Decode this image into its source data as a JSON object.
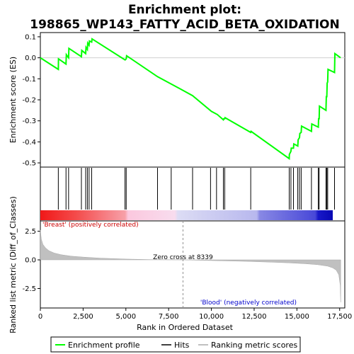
{
  "chart_data": {
    "type": "line",
    "title_line1": "Enrichment plot:",
    "title_line2": "198865_WP143_FATTY_ACID_BETA_OXIDATION",
    "top_panel": {
      "ylabel": "Enrichment score (ES)",
      "ylim": [
        -0.52,
        0.12
      ],
      "yticks": [
        0.1,
        0.0,
        -0.1,
        -0.2,
        -0.3,
        -0.4,
        -0.5
      ],
      "ytick_labels": [
        "0.1",
        "0.0",
        "-0.1",
        "-0.2",
        "-0.3",
        "-0.4",
        "-0.5"
      ],
      "es_curve": {
        "name": "Enrichment profile",
        "x": [
          0,
          1050,
          1060,
          1500,
          1520,
          1650,
          1670,
          2400,
          2420,
          2650,
          2670,
          2750,
          2770,
          2850,
          2870,
          3000,
          3020,
          4950,
          4960,
          5020,
          5040,
          6850,
          8000,
          8900,
          10000,
          10350,
          10700,
          10720,
          10780,
          10800,
          12300,
          12320,
          14550,
          14560,
          14650,
          14670,
          14800,
          14820,
          15050,
          15070,
          15150,
          15170,
          15250,
          15270,
          15850,
          15870,
          16250,
          16270,
          16300,
          16320,
          16700,
          16720,
          16750,
          16770,
          16800,
          16820,
          17200,
          17220,
          17550
        ],
        "y": [
          0.0,
          -0.055,
          -0.005,
          -0.03,
          0.015,
          0.0,
          0.045,
          0.005,
          0.035,
          0.02,
          0.05,
          0.04,
          0.07,
          0.06,
          0.08,
          0.075,
          0.09,
          -0.01,
          -0.01,
          -0.005,
          0.01,
          -0.09,
          -0.14,
          -0.18,
          -0.255,
          -0.27,
          -0.295,
          -0.29,
          -0.29,
          -0.285,
          -0.355,
          -0.35,
          -0.48,
          -0.46,
          -0.445,
          -0.43,
          -0.43,
          -0.41,
          -0.42,
          -0.39,
          -0.38,
          -0.36,
          -0.355,
          -0.325,
          -0.35,
          -0.315,
          -0.33,
          -0.29,
          -0.29,
          -0.23,
          -0.25,
          -0.185,
          -0.185,
          -0.12,
          -0.115,
          -0.055,
          -0.07,
          0.02,
          0.0
        ]
      }
    },
    "hits": {
      "name": "Hits",
      "x": [
        1050,
        1500,
        1650,
        2400,
        2650,
        2750,
        2850,
        3000,
        4950,
        5020,
        6850,
        7650,
        8900,
        9950,
        10300,
        10700,
        10780,
        12300,
        14550,
        14650,
        14800,
        15050,
        15150,
        15250,
        15850,
        16250,
        16300,
        16700,
        16750,
        16800,
        17200
      ]
    },
    "bottom_panel": {
      "ylabel": "Ranked list metric (Diff_of_Classes)",
      "xlabel": "Rank in Ordered Dataset",
      "ylim": [
        -4.2,
        3.4
      ],
      "yticks": [
        2.5,
        0.0,
        -2.5
      ],
      "ytick_labels": [
        "2.5",
        "0.0",
        "-2.5"
      ],
      "xlim": [
        0,
        17800
      ],
      "xticks": [
        0,
        2500,
        5000,
        7500,
        10000,
        12500,
        15000,
        17500
      ],
      "xtick_labels": [
        "0",
        "2,500",
        "5,000",
        "7,500",
        "10,000",
        "12,500",
        "15,000",
        "17,500"
      ],
      "metric_curve": {
        "name": "Ranking metric scores",
        "x": [
          0,
          60,
          150,
          300,
          500,
          800,
          1200,
          1800,
          2500,
          3500,
          5000,
          6500,
          8339,
          10000,
          12000,
          13500,
          14500,
          15500,
          16200,
          16800,
          17100,
          17300,
          17450,
          17530,
          17560
        ],
        "y": [
          2.6,
          1.8,
          1.35,
          1.05,
          0.8,
          0.6,
          0.45,
          0.32,
          0.24,
          0.15,
          0.07,
          0.02,
          0.0,
          -0.06,
          -0.13,
          -0.2,
          -0.26,
          -0.34,
          -0.42,
          -0.55,
          -0.7,
          -0.9,
          -1.3,
          -2.2,
          -3.7
        ]
      },
      "zero_cross_rank": 8339,
      "zero_cross_label": "Zero cross at 8339",
      "pos_label": "'Breast' (positively correlated)",
      "neg_label": "'Blood' (negatively correlated)"
    },
    "legend": [
      {
        "label": "Enrichment profile",
        "color": "#00ff00"
      },
      {
        "label": "Hits",
        "color": "#000000"
      },
      {
        "label": "Ranking metric scores",
        "color": "#c0c0c0"
      }
    ],
    "colors": {
      "es": "#00ff00",
      "metric_fill": "#c0c0c0",
      "pos_label": "#cc0000",
      "neg_label": "#0000cc",
      "zero_line": "#909090"
    }
  }
}
